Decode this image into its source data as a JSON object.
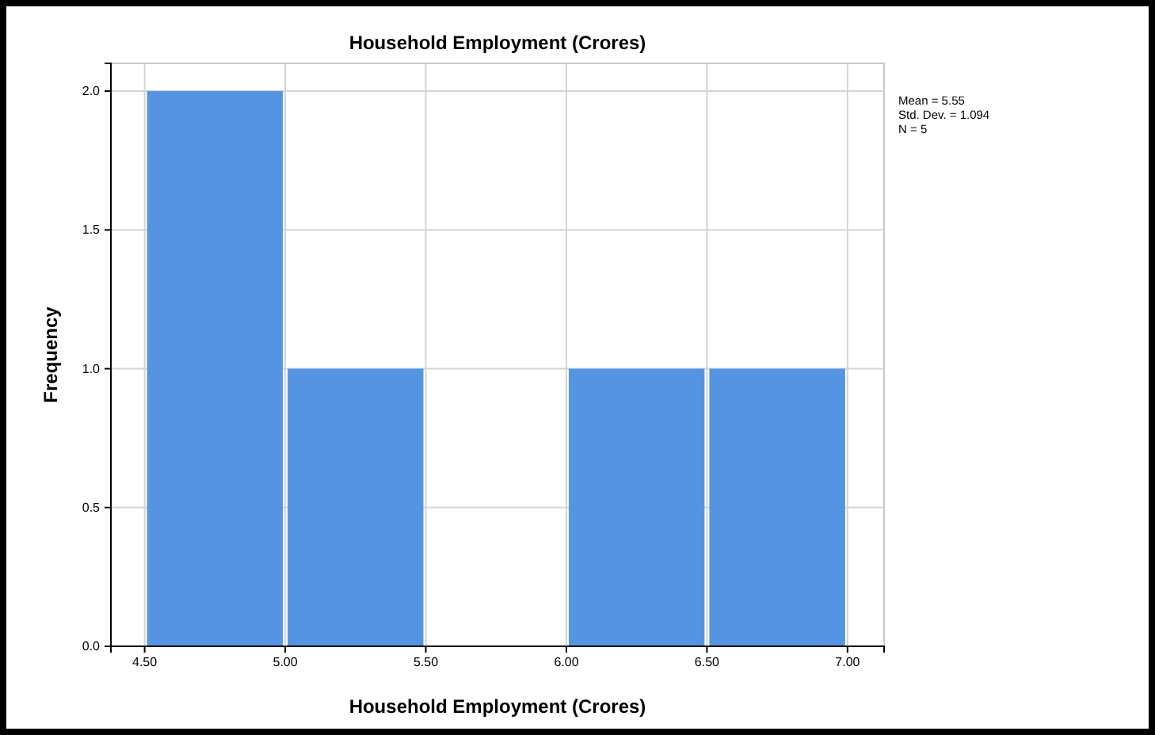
{
  "chart_data": {
    "type": "histogram",
    "title": "Household Employment (Crores)",
    "xlabel": "Household Employment (Crores)",
    "ylabel": "Frequency",
    "bins": [
      4.5,
      5.0,
      5.5,
      6.0,
      6.5,
      7.0
    ],
    "values": [
      2,
      1,
      0,
      1,
      1
    ],
    "color": "#5594e3",
    "xlim": [
      4.38,
      7.13
    ],
    "xticks": [
      {
        "value": 4.5,
        "label": "4.50"
      },
      {
        "value": 5,
        "label": "5.00"
      },
      {
        "value": 5.5,
        "label": "5.50"
      },
      {
        "value": 6,
        "label": "6.00"
      },
      {
        "value": 6.5,
        "label": "6.50"
      },
      {
        "value": 7,
        "label": "7.00"
      }
    ],
    "ylim": [
      0,
      2.1
    ],
    "yticks": [
      {
        "value": 0,
        "label": "0.0"
      },
      {
        "value": 0.5,
        "label": "0.5"
      },
      {
        "value": 1,
        "label": "1.0"
      },
      {
        "value": 1.5,
        "label": "1.5"
      },
      {
        "value": 2,
        "label": "2.0"
      }
    ],
    "grid": true,
    "annotations": [
      "Mean = 5.55",
      "Std. Dev. = 1.094",
      "N = 5"
    ]
  }
}
